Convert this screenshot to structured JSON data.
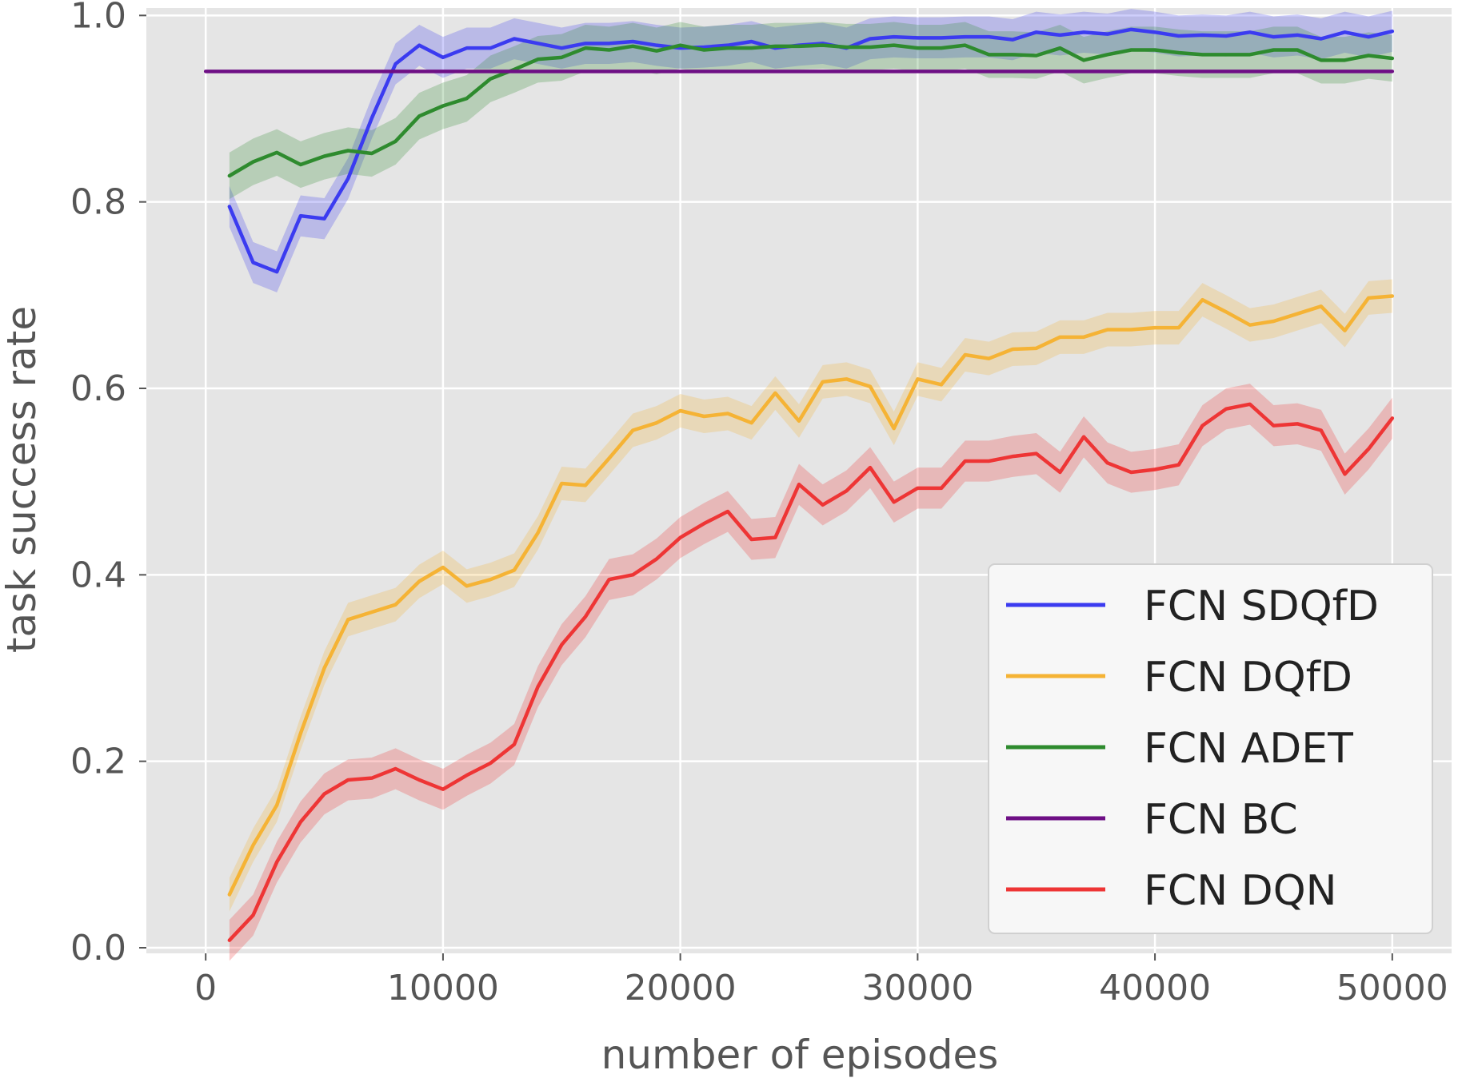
{
  "chart_data": {
    "type": "line",
    "title": "",
    "xlabel": "number of episodes",
    "ylabel": "task success rate",
    "xlim": [
      -2500,
      52500
    ],
    "ylim": [
      -0.006,
      1.008
    ],
    "x_ticks": [
      0,
      10000,
      20000,
      30000,
      40000,
      50000
    ],
    "x_tick_labels": [
      "0",
      "10000",
      "20000",
      "30000",
      "40000",
      "50000"
    ],
    "y_ticks": [
      0.0,
      0.2,
      0.4,
      0.6,
      0.8,
      1.0
    ],
    "y_tick_labels": [
      "0.0",
      "0.2",
      "0.4",
      "0.6",
      "0.8",
      "1.0"
    ],
    "grid": true,
    "legend_position": "lower-right",
    "x": [
      1000,
      2000,
      3000,
      4000,
      5000,
      6000,
      7000,
      8000,
      9000,
      10000,
      11000,
      12000,
      13000,
      14000,
      15000,
      16000,
      17000,
      18000,
      19000,
      20000,
      21000,
      22000,
      23000,
      24000,
      25000,
      26000,
      27000,
      28000,
      29000,
      30000,
      31000,
      32000,
      33000,
      34000,
      35000,
      36000,
      37000,
      38000,
      39000,
      40000,
      41000,
      42000,
      43000,
      44000,
      45000,
      46000,
      47000,
      48000,
      49000,
      50000
    ],
    "series": [
      {
        "name": "FCN SDQfD",
        "color": "#3b3bf0",
        "values": [
          0.795,
          0.735,
          0.725,
          0.785,
          0.782,
          0.825,
          0.89,
          0.948,
          0.968,
          0.955,
          0.965,
          0.965,
          0.975,
          0.97,
          0.965,
          0.97,
          0.97,
          0.972,
          0.968,
          0.965,
          0.966,
          0.968,
          0.972,
          0.965,
          0.968,
          0.97,
          0.965,
          0.975,
          0.977,
          0.976,
          0.976,
          0.977,
          0.977,
          0.974,
          0.982,
          0.979,
          0.982,
          0.98,
          0.985,
          0.982,
          0.978,
          0.979,
          0.978,
          0.982,
          0.977,
          0.979,
          0.975,
          0.982,
          0.977,
          0.983
        ],
        "band": 0.022
      },
      {
        "name": "FCN DQfD",
        "color": "#f5b335",
        "values": [
          0.057,
          0.11,
          0.153,
          0.23,
          0.3,
          0.352,
          0.36,
          0.368,
          0.393,
          0.408,
          0.388,
          0.395,
          0.405,
          0.445,
          0.498,
          0.496,
          0.525,
          0.555,
          0.563,
          0.576,
          0.57,
          0.573,
          0.563,
          0.595,
          0.565,
          0.607,
          0.61,
          0.602,
          0.557,
          0.61,
          0.604,
          0.636,
          0.632,
          0.642,
          0.643,
          0.655,
          0.655,
          0.663,
          0.663,
          0.665,
          0.665,
          0.695,
          0.682,
          0.668,
          0.672,
          0.68,
          0.688,
          0.662,
          0.697,
          0.699
        ],
        "band": 0.018
      },
      {
        "name": "FCN ADET",
        "color": "#2e8b2e",
        "values": [
          0.828,
          0.843,
          0.853,
          0.84,
          0.849,
          0.855,
          0.852,
          0.865,
          0.892,
          0.903,
          0.911,
          0.932,
          0.942,
          0.953,
          0.955,
          0.965,
          0.963,
          0.967,
          0.962,
          0.968,
          0.963,
          0.965,
          0.965,
          0.967,
          0.967,
          0.968,
          0.966,
          0.966,
          0.968,
          0.965,
          0.965,
          0.968,
          0.958,
          0.958,
          0.957,
          0.965,
          0.952,
          0.958,
          0.963,
          0.963,
          0.96,
          0.958,
          0.958,
          0.958,
          0.963,
          0.963,
          0.952,
          0.952,
          0.957,
          0.954
        ],
        "band": 0.025
      },
      {
        "name": "FCN BC",
        "color": "#6e0f85",
        "values": [
          0.94,
          0.94,
          0.94,
          0.94,
          0.94,
          0.94,
          0.94,
          0.94,
          0.94,
          0.94,
          0.94,
          0.94,
          0.94,
          0.94,
          0.94,
          0.94,
          0.94,
          0.94,
          0.94,
          0.94,
          0.94,
          0.94,
          0.94,
          0.94,
          0.94,
          0.94,
          0.94,
          0.94,
          0.94,
          0.94,
          0.94,
          0.94,
          0.94,
          0.94,
          0.94,
          0.94,
          0.94,
          0.94,
          0.94,
          0.94,
          0.94,
          0.94,
          0.94,
          0.94,
          0.94,
          0.94,
          0.94,
          0.94,
          0.94,
          0.94
        ],
        "x_range": [
          0,
          50000
        ],
        "band": 0
      },
      {
        "name": "FCN DQN",
        "color": "#ee3535",
        "values": [
          0.008,
          0.035,
          0.092,
          0.135,
          0.165,
          0.18,
          0.182,
          0.192,
          0.18,
          0.17,
          0.185,
          0.198,
          0.218,
          0.28,
          0.325,
          0.355,
          0.395,
          0.4,
          0.417,
          0.44,
          0.455,
          0.468,
          0.438,
          0.44,
          0.497,
          0.475,
          0.49,
          0.515,
          0.478,
          0.493,
          0.493,
          0.522,
          0.522,
          0.527,
          0.53,
          0.51,
          0.548,
          0.52,
          0.51,
          0.513,
          0.518,
          0.56,
          0.578,
          0.583,
          0.56,
          0.562,
          0.555,
          0.508,
          0.535,
          0.568
        ],
        "band": 0.022
      }
    ]
  }
}
